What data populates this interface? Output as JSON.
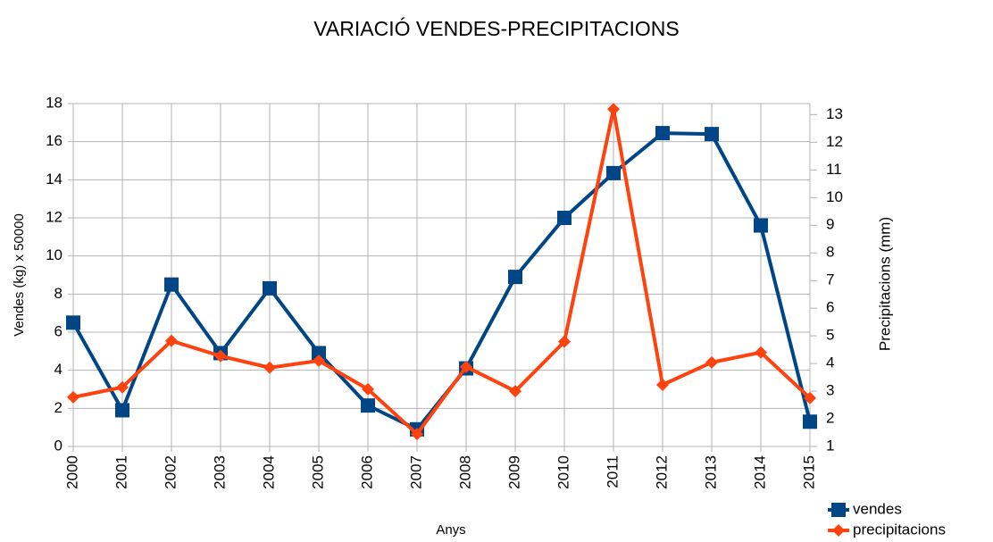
{
  "chart_data": {
    "type": "line",
    "title": "VARIACIÓ VENDES-PRECIPITACIONS",
    "x_label": "Anys",
    "y_label": "Vendes (kg) x 50000",
    "y2_label": "Precipitacions (mm)",
    "categories": [
      "2000",
      "2001",
      "2002",
      "2003",
      "2004",
      "2005",
      "2006",
      "2007",
      "2008",
      "2009",
      "2010",
      "2011",
      "2012",
      "2013",
      "2014",
      "2015"
    ],
    "series": [
      {
        "name": "vendes",
        "color": "#004586",
        "marker": "square",
        "values": [
          6.5,
          1.9,
          8.5,
          4.9,
          8.3,
          4.9,
          2.15,
          0.9,
          4.1,
          8.9,
          12.0,
          14.35,
          16.45,
          16.4,
          11.6,
          1.3
        ]
      },
      {
        "name": "precipitacions",
        "color": "#ff420e",
        "marker": "diamond",
        "axis": "y2",
        "values": [
          2.78,
          3.14,
          4.82,
          4.27,
          3.85,
          4.1,
          3.07,
          1.45,
          3.88,
          3.0,
          4.79,
          13.2,
          3.23,
          4.04,
          4.4,
          2.75
        ]
      }
    ],
    "ylim": [
      0,
      18
    ],
    "yticks": [
      0,
      2,
      4,
      6,
      8,
      10,
      12,
      14,
      16,
      18
    ],
    "y2lim": [
      1,
      13.4
    ],
    "y2ticks": [
      1,
      2,
      3,
      4,
      5,
      6,
      7,
      8,
      9,
      10,
      11,
      12,
      13
    ],
    "grid": true,
    "legend": "bottom-right"
  }
}
